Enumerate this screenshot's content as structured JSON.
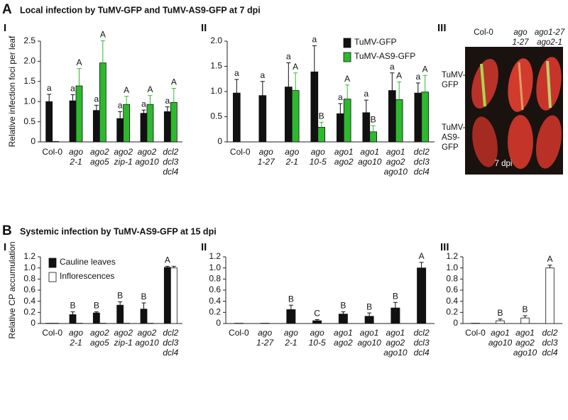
{
  "sections": [
    {
      "letter": "A",
      "title": "Local infection by TuMV-GFP and TuMV-AS9-GFP at 7 dpi"
    },
    {
      "letter": "B",
      "title": "Systemic infection by TuMV-AS9-GFP at 15 dpi"
    }
  ],
  "photo": {
    "panel_label": "III",
    "column_labels": [
      [
        "Col-0"
      ],
      [
        "ago",
        "1-27"
      ],
      [
        "ago1-27",
        "ago2-1"
      ]
    ],
    "row_labels": [
      [
        "TuMV-",
        "GFP"
      ],
      [
        "TuMV-",
        "AS9-",
        "GFP"
      ]
    ],
    "caption": "7 dpi"
  },
  "chart_data": [
    {
      "type": "bar",
      "panel_label": "I",
      "ylabel": "Relative infection foci per leaf",
      "categories": [
        [
          "Col-0"
        ],
        [
          "ago",
          "2-1"
        ],
        [
          "ago2",
          "ago5"
        ],
        [
          "ago2",
          "zip-1"
        ],
        [
          "ago2",
          "ago10"
        ],
        [
          "dcl2",
          "dcl3",
          "dcl4"
        ]
      ],
      "series": [
        {
          "color": "#111111",
          "values": [
            1.0,
            1.02,
            0.78,
            0.58,
            0.71,
            0.75
          ],
          "errors": [
            0.18,
            0.15,
            0.13,
            0.17,
            0.08,
            0.12
          ],
          "letters": [
            "a",
            "a",
            "a",
            "a",
            "a",
            "a"
          ]
        },
        {
          "color": "#2db92d",
          "values": [
            0.01,
            1.39,
            1.96,
            0.93,
            0.93,
            0.98
          ],
          "errors": [
            null,
            0.43,
            0.55,
            0.2,
            0.22,
            0.35
          ],
          "letters": [
            null,
            "A",
            "A",
            "A",
            "A",
            "A"
          ]
        }
      ],
      "ylim": [
        0,
        2.5
      ],
      "yticks": [
        0,
        0.5,
        {
          "value": 1,
          "label": "1.0"
        },
        1.5,
        {
          "value": 2,
          "label": "2.0"
        },
        2.5
      ]
    },
    {
      "type": "bar",
      "panel_label": "II",
      "categories": [
        [
          "Col-0"
        ],
        [
          "ago",
          "1-27"
        ],
        [
          "ago",
          "2-1"
        ],
        [
          "ago",
          "10-5"
        ],
        [
          "ago1",
          "ago2"
        ],
        [
          "ago1",
          "ago10"
        ],
        [
          "ago1",
          "ago2",
          "ago10"
        ],
        [
          "dcl2",
          "dcl3",
          "dcl4"
        ]
      ],
      "series": [
        {
          "name": "TuMV-GFP",
          "color": "#111111",
          "values": [
            0.97,
            0.92,
            1.09,
            1.39,
            0.56,
            0.58,
            1.02,
            0.97
          ],
          "errors": [
            0.27,
            0.28,
            0.48,
            0.52,
            0.2,
            0.25,
            0.35,
            0.2
          ],
          "letters": [
            "a",
            "a",
            "a",
            "a",
            "a",
            "a",
            "a",
            "a"
          ]
        },
        {
          "name": "TuMV-AS9-GFP",
          "color": "#2db92d",
          "values": [
            null,
            null,
            1.02,
            0.29,
            0.85,
            0.2,
            0.84,
            0.99
          ],
          "errors": [
            null,
            null,
            0.35,
            0.1,
            0.28,
            0.12,
            0.35,
            0.33
          ],
          "letters": [
            null,
            null,
            "A",
            "B",
            "A",
            "B",
            "A",
            "A"
          ]
        }
      ],
      "ylim": [
        0,
        2
      ],
      "yticks": [
        0,
        0.5,
        {
          "value": 1,
          "label": "1.0"
        },
        1.5,
        {
          "value": 2,
          "label": "2.0"
        }
      ],
      "legend": "top-right"
    },
    {
      "type": "bar",
      "panel_label": "I",
      "ylabel": "Relative CP accumulation",
      "categories": [
        [
          "Col-0"
        ],
        [
          "ago",
          "2-1"
        ],
        [
          "ago2",
          "ago5"
        ],
        [
          "ago2",
          "zip-1"
        ],
        [
          "ago2",
          "ago10"
        ],
        [
          "dcl2",
          "dcl3",
          "dcl4"
        ]
      ],
      "series": [
        {
          "name": "Cauline leaves",
          "color": "#111111",
          "values": [
            0.005,
            0.16,
            0.19,
            0.33,
            0.26,
            1.01
          ],
          "errors": [
            null,
            0.05,
            0.02,
            0.06,
            0.11,
            0.02
          ],
          "letters": [
            null,
            "B",
            "B",
            "B",
            "B",
            "A"
          ]
        },
        {
          "name": "Inflorescences",
          "color": "#ffffff",
          "values": [
            0.005,
            0.005,
            0.005,
            0.005,
            0.005,
            1.0
          ],
          "errors": [
            null,
            null,
            null,
            null,
            null,
            0.03
          ],
          "letters": [
            null,
            null,
            null,
            null,
            null,
            null
          ]
        }
      ],
      "ylim": [
        0,
        1.2
      ],
      "yticks": [
        0,
        0.2,
        0.4,
        0.6,
        0.8,
        {
          "value": 1,
          "label": "1.0"
        },
        1.2
      ],
      "legend": "top-left"
    },
    {
      "type": "bar",
      "panel_label": "II",
      "categories": [
        [
          "Col-0"
        ],
        [
          "ago",
          "1-27"
        ],
        [
          "ago",
          "2-1"
        ],
        [
          "ago",
          "10-5"
        ],
        [
          "ago1",
          "ago2"
        ],
        [
          "ago1",
          "ago10"
        ],
        [
          "ago1",
          "ago2",
          "ago10"
        ],
        [
          "dcl2",
          "dcl3",
          "dcl4"
        ]
      ],
      "series": [
        {
          "color": "#111111",
          "values": [
            0.005,
            0.005,
            0.25,
            0.05,
            0.17,
            0.13,
            0.28,
            1.0
          ],
          "errors": [
            null,
            null,
            0.08,
            0.02,
            0.04,
            0.06,
            0.1,
            0.1
          ],
          "letters": [
            null,
            null,
            "B",
            "C",
            "B",
            "B",
            "B",
            "A"
          ]
        }
      ],
      "ylim": [
        0,
        1.2
      ],
      "yticks": [
        0,
        0.2,
        0.4,
        0.6,
        0.8,
        {
          "value": 1,
          "label": "1.0"
        },
        1.2
      ]
    },
    {
      "type": "bar",
      "panel_label": "III",
      "categories": [
        [
          "Col-0"
        ],
        [
          "ago1",
          "ago10"
        ],
        [
          "ago1",
          "ago2",
          "ago10"
        ],
        [
          "dcl2",
          "dcl3",
          "dcl4"
        ]
      ],
      "series": [
        {
          "color": "#ffffff",
          "values": [
            0.005,
            0.05,
            0.1,
            1.0
          ],
          "errors": [
            null,
            0.03,
            0.04,
            0.05
          ],
          "letters": [
            null,
            "B",
            "B",
            "A"
          ]
        }
      ],
      "ylim": [
        0,
        1.2
      ],
      "yticks": [
        0,
        0.2,
        0.4,
        0.6,
        0.8,
        {
          "value": 1,
          "label": "1.0"
        },
        1.2
      ]
    }
  ]
}
